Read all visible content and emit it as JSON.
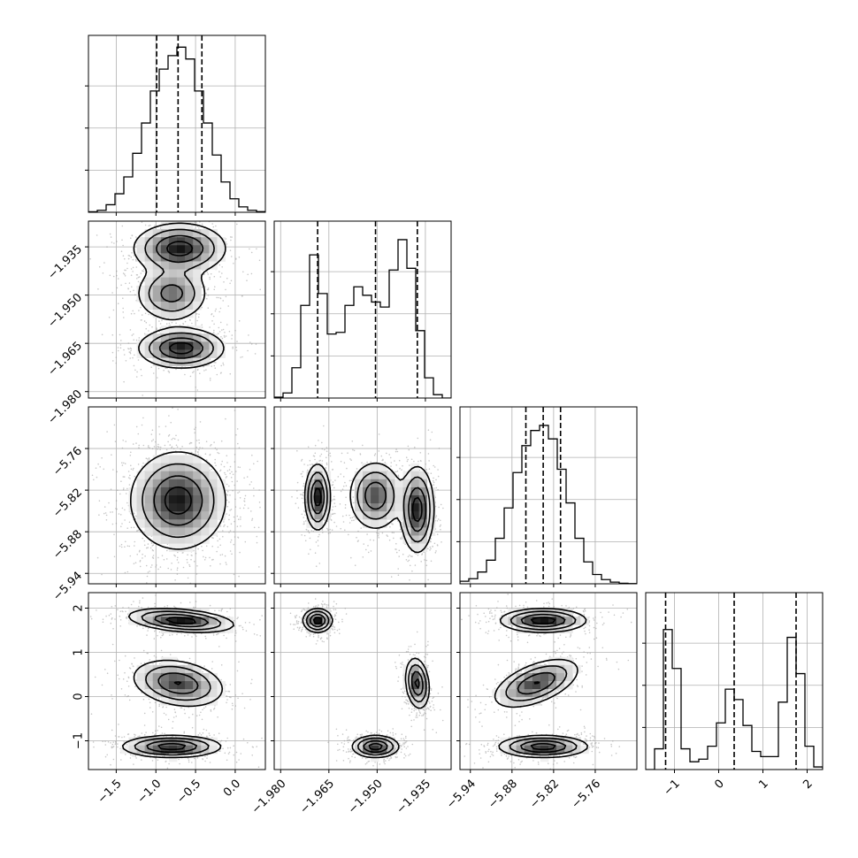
{
  "chart_data": {
    "type": "corner",
    "parameters": 4,
    "grid": true,
    "axes": [
      {
        "ticks": [
          -1.5,
          -1.0,
          -0.5,
          0.0
        ],
        "tick_labels": [
          "−1.5",
          "−1.0",
          "−0.5",
          "0.0"
        ],
        "range": [
          -1.85,
          0.38
        ]
      },
      {
        "ticks": [
          -1.98,
          -1.965,
          -1.95,
          -1.935
        ],
        "tick_labels": [
          "−1.980",
          "−1.965",
          "−1.950",
          "−1.935"
        ],
        "range": [
          -1.982,
          -1.927
        ]
      },
      {
        "ticks": [
          -5.94,
          -5.88,
          -5.82,
          -5.76
        ],
        "tick_labels": [
          "−5.94",
          "−5.88",
          "−5.82",
          "−5.76"
        ],
        "range": [
          -5.955,
          -5.7
        ]
      },
      {
        "ticks": [
          -1,
          0,
          1,
          2
        ],
        "tick_labels": [
          "−1",
          "0",
          "1",
          "2"
        ],
        "range": [
          -1.65,
          2.35
        ]
      }
    ],
    "marginals": [
      {
        "quantiles": [
          -0.99,
          -0.72,
          -0.42
        ],
        "bin_edges": [
          -1.85,
          -1.7385,
          -1.627,
          -1.5155,
          -1.404,
          -1.2925,
          -1.181,
          -1.0695,
          -0.958,
          -0.8465,
          -0.735,
          -0.6235,
          -0.512,
          -0.4005,
          -0.289,
          -0.1775,
          -0.066,
          0.0455,
          0.157,
          0.2685,
          0.38
        ],
        "counts": [
          0.3,
          1.2,
          4.5,
          11,
          21,
          35,
          53,
          72,
          85,
          93,
          98,
          91,
          72,
          53,
          34,
          18,
          8,
          3.2,
          1.2,
          0.4
        ],
        "ymax": 100
      },
      {
        "quantiles": [
          -1.9685,
          -1.9505,
          -1.9375
        ],
        "bin_edges": [
          -1.982,
          -1.97925,
          -1.9765,
          -1.97375,
          -1.971,
          -1.96825,
          -1.9655,
          -1.96275,
          -1.96,
          -1.95725,
          -1.9545,
          -1.95175,
          -1.949,
          -1.94625,
          -1.9435,
          -1.94075,
          -1.938,
          -1.93525,
          -1.9325,
          -1.92975,
          -1.927
        ],
        "counts": [
          0.5,
          3,
          18,
          55,
          85,
          62,
          38,
          39,
          55,
          66,
          61,
          57,
          54,
          76,
          94,
          77,
          40,
          12,
          2,
          0
        ],
        "ymax": 100
      },
      {
        "quantiles": [
          -5.86,
          -5.835,
          -5.81
        ],
        "bin_edges": [
          -5.955,
          -5.94225,
          -5.9295,
          -5.91675,
          -5.904,
          -5.89125,
          -5.8785,
          -5.86575,
          -5.853,
          -5.84025,
          -5.8275,
          -5.81475,
          -5.802,
          -5.78925,
          -5.7765,
          -5.76375,
          -5.751,
          -5.73825,
          -5.7255,
          -5.71275,
          -5.7
        ],
        "counts": [
          1.5,
          3,
          7,
          14,
          27,
          45,
          66,
          82,
          91,
          94,
          86,
          68,
          48,
          27,
          13,
          5.5,
          2.5,
          1,
          0.3,
          0.1
        ],
        "ymax": 100
      },
      {
        "quantiles": [
          -1.2,
          0.35,
          1.75
        ],
        "bin_edges": [
          -1.65,
          -1.45,
          -1.25,
          -1.05,
          -0.85,
          -0.65,
          -0.45,
          -0.25,
          -0.05,
          0.15,
          0.35,
          0.55,
          0.75,
          0.95,
          1.15,
          1.35,
          1.55,
          1.75,
          1.95,
          2.15,
          2.35
        ],
        "counts": [
          0,
          8,
          54,
          39,
          8,
          3,
          4,
          9,
          18,
          31,
          27,
          17,
          7,
          5,
          5,
          26,
          51,
          37,
          9,
          1
        ],
        "ymax": 65
      }
    ],
    "joints": [
      {
        "row": 1,
        "col": 0,
        "modes": [
          {
            "x": -0.7,
            "y": -1.9355,
            "sx": 0.28,
            "sy": 0.0038,
            "w": 1.0
          },
          {
            "x": -0.8,
            "y": -1.9495,
            "sx": 0.22,
            "sy": 0.0042,
            "w": 0.7
          },
          {
            "x": -0.68,
            "y": -1.9665,
            "sx": 0.26,
            "sy": 0.003,
            "w": 1.0
          }
        ]
      },
      {
        "row": 2,
        "col": 0,
        "modes": [
          {
            "x": -0.72,
            "y": -5.835,
            "sx": 0.29,
            "sy": 0.034,
            "w": 1.0
          }
        ]
      },
      {
        "row": 2,
        "col": 1,
        "modes": [
          {
            "x": -1.9685,
            "y": -5.83,
            "sx": 0.0019,
            "sy": 0.023,
            "w": 1.0
          },
          {
            "x": -1.9505,
            "y": -5.828,
            "sx": 0.004,
            "sy": 0.024,
            "w": 0.8
          },
          {
            "x": -1.9375,
            "y": -5.848,
            "sx": 0.0025,
            "sy": 0.03,
            "w": 1.0
          }
        ]
      },
      {
        "row": 3,
        "col": 0,
        "modes": [
          {
            "x": -0.68,
            "y": 1.72,
            "sx": 0.32,
            "sy": 0.13,
            "w": 1.0,
            "rho": -0.35
          },
          {
            "x": -0.72,
            "y": 0.3,
            "sx": 0.28,
            "sy": 0.26,
            "w": 0.85,
            "rho": -0.25
          },
          {
            "x": -0.8,
            "y": -1.13,
            "sx": 0.3,
            "sy": 0.12,
            "w": 1.0
          }
        ]
      },
      {
        "row": 3,
        "col": 1,
        "modes": [
          {
            "x": -1.9685,
            "y": 1.72,
            "sx": 0.0022,
            "sy": 0.13,
            "w": 1.0
          },
          {
            "x": -1.9375,
            "y": 0.3,
            "sx": 0.0018,
            "sy": 0.28,
            "w": 0.9,
            "rho": -0.2
          },
          {
            "x": -1.9505,
            "y": -1.13,
            "sx": 0.0035,
            "sy": 0.12,
            "w": 1.0
          }
        ]
      },
      {
        "row": 3,
        "col": 2,
        "modes": [
          {
            "x": -5.835,
            "y": 1.72,
            "sx": 0.03,
            "sy": 0.13,
            "w": 1.0
          },
          {
            "x": -5.845,
            "y": 0.3,
            "sx": 0.03,
            "sy": 0.27,
            "w": 0.85,
            "rho": 0.55
          },
          {
            "x": -5.835,
            "y": -1.13,
            "sx": 0.031,
            "sy": 0.12,
            "w": 1.0
          }
        ]
      }
    ]
  }
}
